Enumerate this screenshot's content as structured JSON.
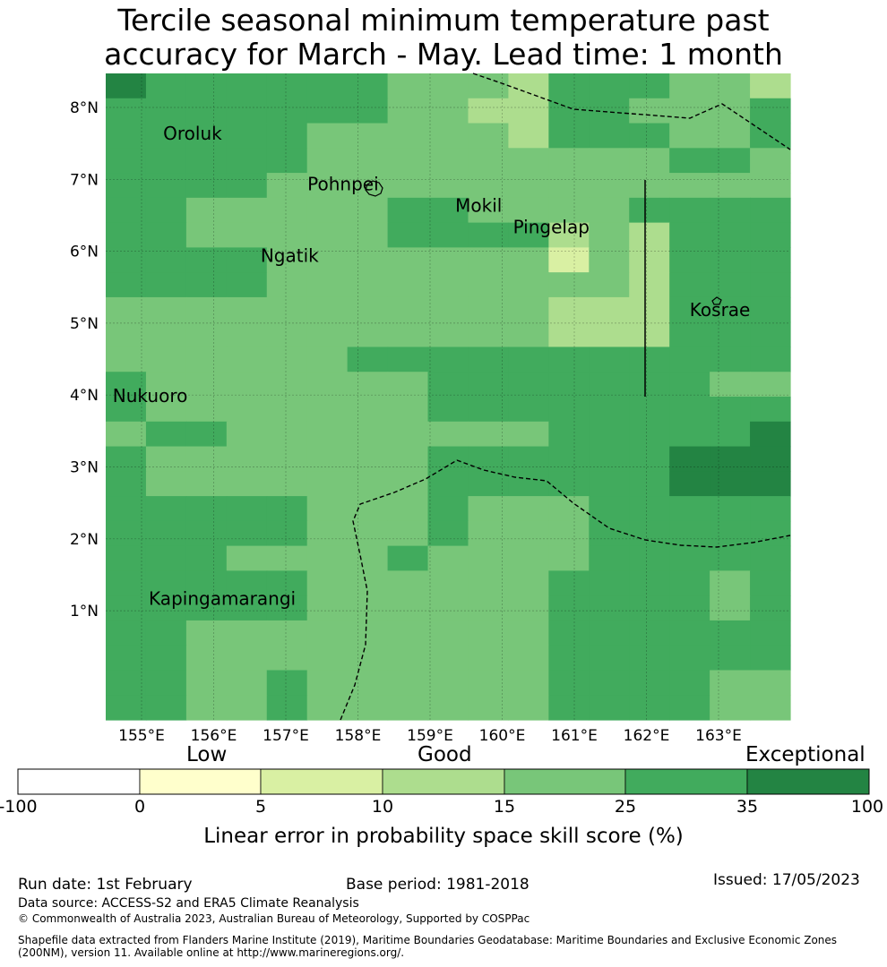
{
  "title_line1": "Tercile seasonal minimum temperature past",
  "title_line2": "accuracy for March - May. Lead time: 1 month",
  "map": {
    "lon_labels": [
      "155°E",
      "156°E",
      "157°E",
      "158°E",
      "159°E",
      "160°E",
      "161°E",
      "162°E",
      "163°E"
    ],
    "lat_labels": [
      "8°N",
      "7°N",
      "6°N",
      "5°N",
      "4°N",
      "3°N",
      "2°N",
      "1°N"
    ],
    "places": [
      {
        "name": "Oroluk",
        "lon": 155.3,
        "lat": 7.55
      },
      {
        "name": "Pohnpei",
        "lon": 157.3,
        "lat": 6.85
      },
      {
        "name": "Mokil",
        "lon": 159.35,
        "lat": 6.55
      },
      {
        "name": "Pingelap",
        "lon": 160.15,
        "lat": 6.25
      },
      {
        "name": "Ngatik",
        "lon": 156.65,
        "lat": 5.85
      },
      {
        "name": "Kosrae",
        "lon": 162.6,
        "lat": 5.1
      },
      {
        "name": "Nukuoro",
        "lon": 154.6,
        "lat": 3.9
      },
      {
        "name": "Kapingamarangi",
        "lon": 155.1,
        "lat": 1.08
      }
    ],
    "skill_colors": [
      "#ffffff",
      "#ffffcc",
      "#d9f0a3",
      "#addd8e",
      "#78c679",
      "#41ab5d",
      "#238443"
    ],
    "grid_rows_north_to_south": [
      "65555554443555443",
      "55555554433554445",
      "55555444443555445",
      "55555444444444554",
      "55554444444444444",
      "55444445544445555",
      "55444445555343555",
      "55554444444243555",
      "55554444444443555",
      "44444444444333555",
      "44444444444333555",
      "44444455555555555",
      "54444444555555544",
      "54444444555555555",
      "45544444444555556",
      "54444444555555666",
      "54444444555555666",
      "55555444544455555",
      "55555444544455555",
      "55544445444455555",
      "55555444444555545",
      "55555444444555545",
      "55444444444555555",
      "55444444444555555",
      "55445444444555544",
      "55445444444555544"
    ]
  },
  "colorbar": {
    "category_labels": [
      "Low",
      "Good",
      "Exceptional"
    ],
    "ticks": [
      "-100",
      "0",
      "5",
      "10",
      "15",
      "25",
      "35",
      "100"
    ],
    "xlabel": "Linear error in probability space skill score (%)"
  },
  "footer": {
    "run_date": "Run date: 1st February",
    "base_period": "Base period: 1981-2018",
    "issued": "Issued: 17/05/2023",
    "data_source": "Data source: ACCESS-S2 and ERA5 Climate Reanalysis",
    "copyright": "© Commonwealth of Australia 2023, Australian Bureau of Meteorology, Supported by COSPPac",
    "shapefile_1": "Shapefile data extracted from Flanders Marine Institute (2019), Maritime Boundaries Geodatabase: Maritime Boundaries and Exclusive Economic Zones",
    "shapefile_2": "(200NM), version 11. Available online at http://www.marineregions.org/."
  }
}
